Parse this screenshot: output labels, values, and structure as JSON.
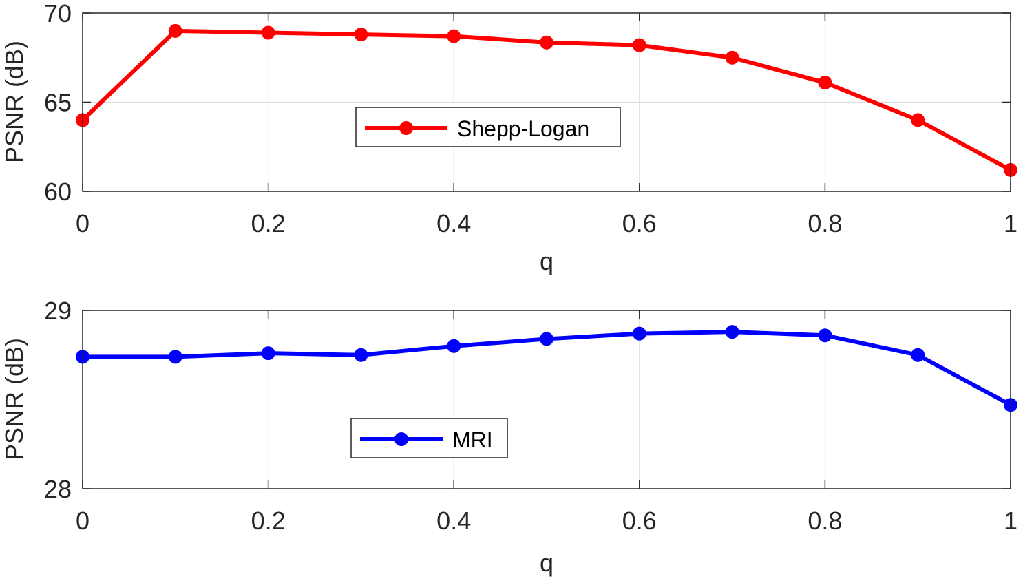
{
  "chart_data": [
    {
      "type": "line",
      "xlabel": "q",
      "ylabel": "PSNR (dB)",
      "xlim": [
        0,
        1
      ],
      "ylim": [
        60,
        70
      ],
      "x_ticks": [
        "0",
        "0.2",
        "0.4",
        "0.6",
        "0.8",
        "1"
      ],
      "y_ticks": [
        "60",
        "65",
        "70"
      ],
      "grid": true,
      "legend": "center",
      "series": [
        {
          "name": "Shepp-Logan",
          "color": "#ff0000",
          "x": [
            0,
            0.1,
            0.2,
            0.3,
            0.4,
            0.5,
            0.6,
            0.7,
            0.8,
            0.9,
            1.0
          ],
          "values": [
            64.0,
            69.0,
            68.9,
            68.8,
            68.7,
            68.35,
            68.2,
            67.5,
            66.1,
            64.0,
            61.2
          ]
        }
      ]
    },
    {
      "type": "line",
      "xlabel": "q",
      "ylabel": "PSNR (dB)",
      "xlim": [
        0,
        1
      ],
      "ylim": [
        28,
        29
      ],
      "x_ticks": [
        "0",
        "0.2",
        "0.4",
        "0.6",
        "0.8",
        "1"
      ],
      "y_ticks": [
        "28",
        "29"
      ],
      "grid": true,
      "legend": "bottom-left",
      "series": [
        {
          "name": "MRI",
          "color": "#0000ff",
          "x": [
            0,
            0.1,
            0.2,
            0.3,
            0.4,
            0.5,
            0.6,
            0.7,
            0.8,
            0.9,
            1.0
          ],
          "values": [
            28.74,
            28.74,
            28.76,
            28.75,
            28.8,
            28.84,
            28.87,
            28.88,
            28.86,
            28.75,
            28.47
          ]
        }
      ]
    }
  ]
}
